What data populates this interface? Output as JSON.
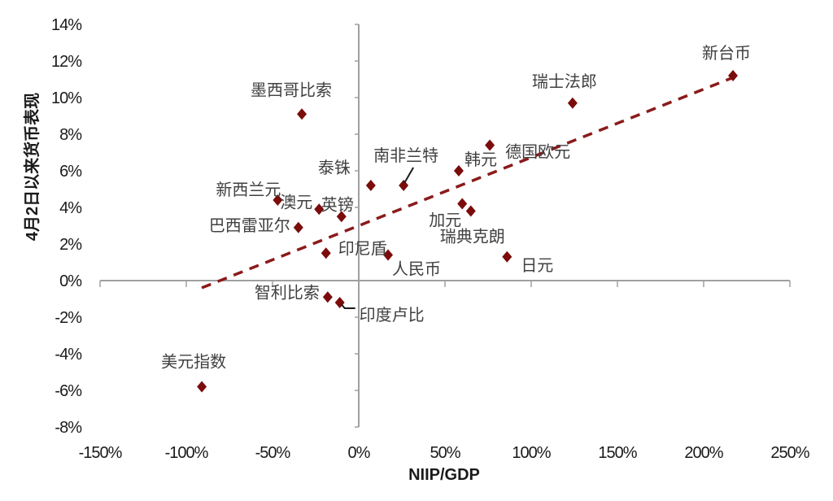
{
  "chart_data": {
    "type": "scatter",
    "title": "",
    "xlabel": "NIIP/GDP",
    "ylabel": "4月2日以来货币表现",
    "xlim": [
      -150,
      250
    ],
    "ylim": [
      -8,
      14
    ],
    "x_ticks": [
      "-150%",
      "-100%",
      "-50%",
      "0%",
      "50%",
      "100%",
      "150%",
      "200%",
      "250%"
    ],
    "y_ticks": [
      "14%",
      "12%",
      "10%",
      "8%",
      "6%",
      "4%",
      "2%",
      "0%",
      "-2%",
      "-4%",
      "-6%",
      "-8%"
    ],
    "grid": false,
    "marker_color": "#7b0c0c",
    "trendline": {
      "style": "dashed",
      "color": "#8b1a1a",
      "slope": 0.0373,
      "intercept": 3.0,
      "x_range": [
        -91,
        217
      ]
    },
    "points": [
      {
        "label": "新台币",
        "x": 217,
        "y": 11.2
      },
      {
        "label": "瑞士法郎",
        "x": 124,
        "y": 9.7
      },
      {
        "label": "墨西哥比索",
        "x": -33,
        "y": 9.1
      },
      {
        "label": "德国欧元",
        "x": 76,
        "y": 7.4
      },
      {
        "label": "韩元",
        "x": 58,
        "y": 6.0
      },
      {
        "label": "泰铢",
        "x": 7,
        "y": 5.2
      },
      {
        "label": "南非兰特",
        "x": 26,
        "y": 5.2
      },
      {
        "label": "新西兰元",
        "x": -47,
        "y": 4.4
      },
      {
        "label": "澳元",
        "x": -23,
        "y": 3.9
      },
      {
        "label": "英镑",
        "x": -10,
        "y": 3.5
      },
      {
        "label": "加元",
        "x": 60,
        "y": 4.2
      },
      {
        "label": "瑞典克朗",
        "x": 65,
        "y": 3.8
      },
      {
        "label": "巴西雷亚尔",
        "x": -35,
        "y": 2.9
      },
      {
        "label": "印尼盾",
        "x": -19,
        "y": 1.5
      },
      {
        "label": "人民币",
        "x": 17,
        "y": 1.4
      },
      {
        "label": "日元",
        "x": 86,
        "y": 1.3
      },
      {
        "label": "智利比索",
        "x": -18,
        "y": -0.9
      },
      {
        "label": "印度卢比",
        "x": -11,
        "y": -1.2
      },
      {
        "label": "美元指数",
        "x": -91,
        "y": -5.8
      }
    ]
  }
}
